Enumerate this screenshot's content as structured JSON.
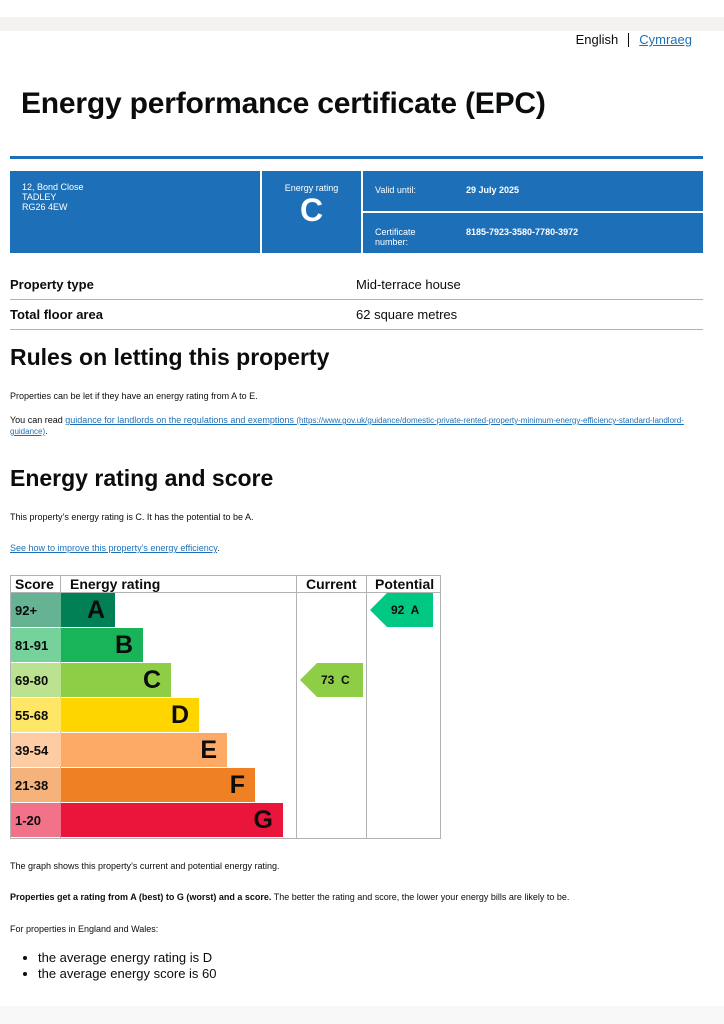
{
  "language": {
    "current": "English",
    "other": "Cymraeg"
  },
  "title": "Energy performance certificate (EPC)",
  "summary": {
    "address_lines": [
      "12, Bond Close",
      "TADLEY",
      "RG26 4EW"
    ],
    "rating_label": "Energy rating",
    "rating": "C",
    "valid_until_label": "Valid until:",
    "valid_until": "29 July 2025",
    "certificate_label": "Certificate number:",
    "certificate_number": "8185-7923-3580-7780-3972"
  },
  "property": [
    {
      "label": "Property type",
      "value": "Mid-terrace house"
    },
    {
      "label": "Total floor area",
      "value": "62 square metres"
    }
  ],
  "letting": {
    "heading": "Rules on letting this property",
    "text": "Properties can be let if they have an energy rating from A to E.",
    "read_prefix": "You can read ",
    "link_text": "guidance for landlords on the regulations and exemptions",
    "link_url": "(https://www.gov.uk/guidance/domestic-private-rented-property-minimum-energy-efficiency-standard-landlord-guidance)",
    "read_suffix": "."
  },
  "energy": {
    "heading": "Energy rating and score",
    "summary_text": "This property’s energy rating is C. It has the potential to be A.",
    "improve_link": "See how to improve this property’s energy efficiency",
    "improve_suffix": "."
  },
  "chart_data": {
    "type": "table",
    "headers": [
      "Score",
      "Energy rating",
      "Current",
      "Potential"
    ],
    "bands": [
      {
        "score": "92+",
        "letter": "A",
        "color": "#008054",
        "score_bg": "#66b394"
      },
      {
        "score": "81-91",
        "letter": "B",
        "color": "#19b459",
        "score_bg": "#75d29b"
      },
      {
        "score": "69-80",
        "letter": "C",
        "color": "#8dce46",
        "score_bg": "#bbe290"
      },
      {
        "score": "55-68",
        "letter": "D",
        "color": "#ffd500",
        "score_bg": "#ffe666"
      },
      {
        "score": "39-54",
        "letter": "E",
        "color": "#fcaa65",
        "score_bg": "#fdcca3"
      },
      {
        "score": "21-38",
        "letter": "F",
        "color": "#ef8023",
        "score_bg": "#f5b37b"
      },
      {
        "score": "1-20",
        "letter": "G",
        "color": "#e9153b",
        "score_bg": "#f27389"
      }
    ],
    "current": {
      "score": 73,
      "letter": "C",
      "label": "73  C",
      "color": "#8dce46"
    },
    "potential": {
      "score": 92,
      "letter": "A",
      "label": "92  A",
      "color": "#00c781"
    }
  },
  "notes": {
    "graph_text": "The graph shows this property’s current and potential energy rating.",
    "bold_text": "Properties get a rating from A (best) to G (worst) and a score.",
    "rest_text": " The better the rating and score, the lower your energy bills are likely to be.",
    "region_text": "For properties in England and Wales:",
    "bullets": [
      "the average energy rating is D",
      "the average energy score is 60"
    ]
  }
}
